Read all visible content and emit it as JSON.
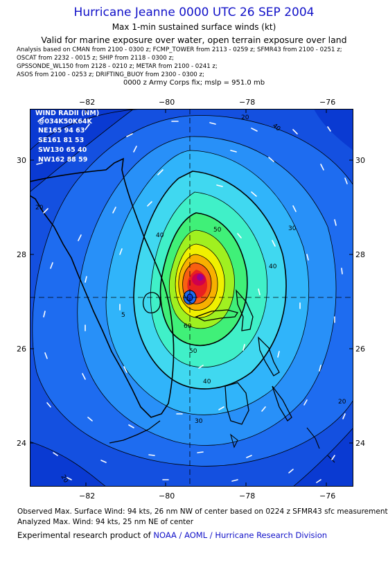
{
  "header": {
    "title": "Hurricane Jeanne 0000 UTC 26 SEP 2004",
    "subtitle": "Max 1-min sustained surface winds (kt)",
    "validity": "Valid for marine exposure over water, open terrain exposure over land",
    "analysis_lines": [
      "Analysis based on  CMAN from 2100 - 0300 z;  FCMP_TOWER from 2113 - 0259 z;  SFMR43 from 2100 - 0251 z;",
      "OSCAT from 2232 - 0015 z;  SHIP from 2118 - 0300 z;",
      "GPSSONDE_WL150 from 2128 - 0210 z;  METAR from 2100 - 0241 z;",
      "ASOS from 2100 - 0253 z;  DRIFTING_BUOY from 2300 - 0300 z;"
    ],
    "fix": "0000 z Army Corps fix; mslp = 951.0 mb"
  },
  "axes": {
    "lon_ticks": [
      "−82",
      "−80",
      "−78",
      "−76"
    ],
    "lat_ticks": [
      "30",
      "28",
      "26",
      "24"
    ]
  },
  "wind_radii": {
    "title": "WIND RADII (NM)",
    "header": "@034K50K64K",
    "rows": [
      "NE165 94  63",
      "SE161  81  53",
      "SW130  65  40",
      "NW162  88  59"
    ]
  },
  "contour_labels": [
    "20",
    "30",
    "40",
    "50",
    "30",
    "40",
    "50",
    "40",
    "30",
    "20",
    "20",
    "60",
    "5",
    "20"
  ],
  "footer": {
    "observed": "Observed Max. Surface Wind: 94 kts, 26 nm NW of center based on 0224 z SFMR43 sfc measurement",
    "analyzed": "Analyzed Max. Wind: 94 kts, 25 nm NE of center",
    "credit_prefix": "Experimental research product of ",
    "credit_link": "NOAA / AOML / Hurricane Research Division"
  },
  "colors": {
    "c0": "#0a3ad2",
    "c1": "#1450e0",
    "c2": "#1e6cf0",
    "c3": "#2890f8",
    "c4": "#30b4fa",
    "c5": "#40d8f0",
    "c6": "#40f0c8",
    "c7": "#40f078",
    "c8": "#a0f020",
    "c9": "#f0f000",
    "c10": "#f8b000",
    "c11": "#f86010",
    "c12": "#e82020",
    "c13": "#d0004c",
    "c14": "#9a0090"
  }
}
